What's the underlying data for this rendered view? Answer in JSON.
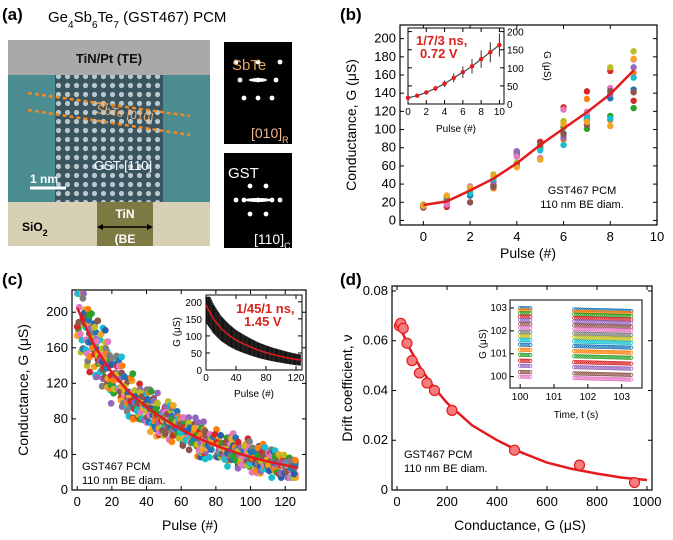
{
  "panels": {
    "a": {
      "label": "(a)",
      "title": "Ge4Sb6Te7 (GST467) PCM",
      "top_electrode": "TiN/Pt (TE)",
      "layer_annotation": "SbTe [010]",
      "grain_label": "GST [110]",
      "scale_bar": "1 nm",
      "oxide": "SiO",
      "oxide_sub": "2",
      "bottom_electrode_line1": "TiN",
      "bottom_electrode_line2": "(BE",
      "diffraction_top_label": "SbTe",
      "diffraction_top_index": "[010]",
      "diffraction_top_sub": "R",
      "diffraction_bottom_label": "GST",
      "diffraction_bottom_index": "[110]",
      "diffraction_bottom_sub": "C"
    },
    "b": {
      "label": "(b)"
    },
    "c": {
      "label": "(c)"
    },
    "d": {
      "label": "(d)"
    }
  },
  "chart_data": [
    {
      "panel": "b",
      "type": "scatter",
      "xlabel": "Pulse (#)",
      "ylabel": "Conductance, G (μS)",
      "xlim": [
        -1,
        10
      ],
      "ylim": [
        -5,
        215
      ],
      "xticks": [
        0,
        2,
        4,
        6,
        8,
        10
      ],
      "yticks": [
        0,
        20,
        40,
        60,
        80,
        100,
        120,
        140,
        160,
        180,
        200
      ],
      "annotation": [
        "GST467 PCM",
        "110 nm BE diam."
      ],
      "x": [
        0,
        1,
        2,
        3,
        4,
        5,
        6,
        7,
        8,
        9
      ],
      "mean": [
        17,
        21,
        33,
        46,
        63,
        83,
        101,
        119,
        139,
        165
      ],
      "scatter_colors": [
        "#1f77b4",
        "#ff7f0e",
        "#2ca02c",
        "#d62728",
        "#9467bd",
        "#bcbd22",
        "#17becf",
        "#e377c2",
        "#8c564b",
        "#f4a521"
      ],
      "fit_color": "#e41a1c",
      "inset": {
        "type": "line",
        "label": "1/7/3 ns, 0.72 V",
        "xlabel": "Pulse (#)",
        "ylabel": "G (μS)",
        "xlim": [
          0,
          10.5
        ],
        "ylim": [
          0,
          210
        ],
        "xticks": [
          0,
          2,
          4,
          6,
          8,
          10
        ],
        "yticks": [
          0,
          50,
          100,
          150,
          200
        ],
        "x": [
          0,
          1,
          2,
          3,
          4,
          5,
          6,
          7,
          8,
          9,
          10
        ],
        "y": [
          17,
          23,
          32,
          43,
          56,
          72,
          88,
          104,
          124,
          143,
          163
        ],
        "err": [
          3,
          4,
          5,
          7,
          9,
          12,
          16,
          20,
          24,
          28,
          32
        ]
      }
    },
    {
      "panel": "c",
      "type": "scatter",
      "xlabel": "Pulse (#)",
      "ylabel": "Conductance, G (μS)",
      "xlim": [
        -3,
        132
      ],
      "ylim": [
        0,
        225
      ],
      "xticks": [
        0,
        20,
        40,
        60,
        80,
        100,
        120
      ],
      "yticks": [
        0,
        40,
        80,
        120,
        160,
        200
      ],
      "annotation": [
        "GST467 PCM",
        "110 nm BE diam."
      ],
      "fit": {
        "x": [
          0,
          10,
          20,
          30,
          40,
          50,
          60,
          70,
          80,
          90,
          100,
          110,
          120,
          127
        ],
        "y": [
          205,
          162,
          132,
          110,
          93,
          80,
          68,
          58,
          50,
          43,
          37,
          32,
          28,
          25
        ]
      },
      "fit_color": "#e41a1c",
      "inset": {
        "type": "line",
        "label": "1/45/1 ns, 1.45 V",
        "xlabel": "Pulse (#)",
        "ylabel": "G (μS)",
        "xlim": [
          0,
          128
        ],
        "ylim": [
          0,
          220
        ],
        "xticks": [
          0,
          40,
          80,
          120
        ],
        "yticks": [
          0,
          50,
          100,
          150,
          200
        ],
        "x": [
          0,
          10,
          20,
          30,
          40,
          50,
          60,
          70,
          80,
          90,
          100,
          110,
          120,
          127
        ],
        "y": [
          190,
          150,
          122,
          103,
          88,
          77,
          67,
          58,
          51,
          45,
          40,
          35,
          31,
          29
        ]
      }
    },
    {
      "panel": "d",
      "type": "scatter",
      "xlabel": "Conductance, G (μS)",
      "ylabel": "Drift coefficient, ν",
      "xlim": [
        -20,
        1020
      ],
      "ylim": [
        0,
        0.082
      ],
      "xticks": [
        0,
        200,
        400,
        600,
        800,
        1000
      ],
      "yticks": [
        0,
        0.02,
        0.04,
        0.06,
        0.08
      ],
      "annotation": [
        "GST467 PCM",
        "110 nm BE diam."
      ],
      "points": {
        "x": [
          10,
          15,
          25,
          40,
          60,
          90,
          120,
          150,
          220,
          470,
          730,
          950
        ],
        "y": [
          0.066,
          0.067,
          0.065,
          0.059,
          0.052,
          0.047,
          0.043,
          0.04,
          0.032,
          0.016,
          0.01,
          0.003
        ]
      },
      "fit": {
        "x": [
          0,
          50,
          100,
          150,
          200,
          300,
          400,
          500,
          600,
          700,
          800,
          900,
          1000
        ],
        "y": [
          0.068,
          0.057,
          0.048,
          0.041,
          0.035,
          0.026,
          0.02,
          0.015,
          0.011,
          0.0085,
          0.0066,
          0.005,
          0.004
        ]
      },
      "point_color": "#f47c7c",
      "fit_color": "#e41a1c",
      "inset": {
        "type": "line",
        "xlabel": "Time, t (s)",
        "ylabel": "G (μS)",
        "xscale": "log",
        "yscale": "log",
        "xticks": [
          "10^0",
          "10^1",
          "10^2",
          "10^3"
        ],
        "yticks": [
          "10^0",
          "10^1",
          "10^2",
          "10^3"
        ],
        "levels": [
          1000,
          800,
          600,
          420,
          300,
          200,
          140,
          90,
          60,
          40,
          25,
          15,
          9,
          5,
          3,
          1.6,
          1.0
        ]
      }
    }
  ]
}
